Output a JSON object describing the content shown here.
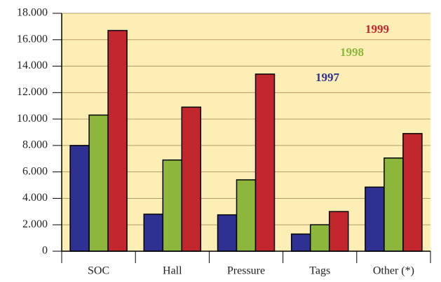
{
  "chart_data": {
    "type": "bar",
    "categories": [
      "SOC",
      "Hall",
      "Pressure",
      "Tags",
      "Other (*)"
    ],
    "series": [
      {
        "name": "1997",
        "color": "#2e3192",
        "values": [
          8000,
          2800,
          2750,
          1300,
          4850
        ]
      },
      {
        "name": "1998",
        "color": "#8cb63c",
        "values": [
          10300,
          6900,
          5400,
          2000,
          7050
        ]
      },
      {
        "name": "1999",
        "color": "#c1272d",
        "values": [
          16700,
          10900,
          13400,
          3000,
          8900
        ]
      }
    ],
    "ylim": [
      0,
      18000
    ],
    "yticks": [
      0,
      {
        "value": 2000,
        "label": "2.000"
      },
      {
        "value": 4000,
        "label": "4.000"
      },
      {
        "value": 6000,
        "label": "6.000"
      },
      {
        "value": 8000,
        "label": "8.000"
      },
      {
        "value": 10000,
        "label": "10.000"
      },
      {
        "value": 12000,
        "label": "12.000"
      },
      {
        "value": 14000,
        "label": "14.000"
      },
      {
        "value": 16000,
        "label": "16.000"
      },
      {
        "value": 18000,
        "label": "18.000"
      }
    ],
    "grid": true
  }
}
